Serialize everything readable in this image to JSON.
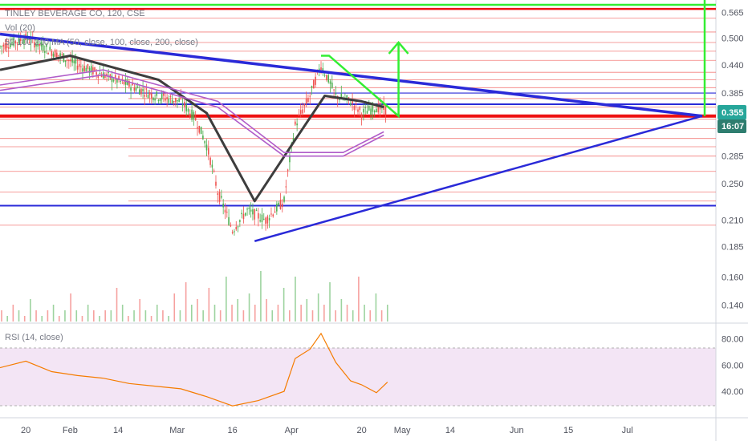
{
  "legend": {
    "symbol_line": "TINLEY BEVERAGE CO, 120, CSE",
    "volume_line": "Vol (20)",
    "ma_line": "50 100 200 MA (50, close, 100, close, 200, close)",
    "rsi_line": "RSI (14, close)"
  },
  "price_axis": {
    "ticks": [
      "0.565",
      "0.500",
      "0.440",
      "0.385",
      "0.285",
      "0.250",
      "0.210",
      "0.185",
      "0.160",
      "0.140"
    ],
    "current_price": "0.355",
    "countdown": "16:07"
  },
  "rsi_axis": {
    "ticks": [
      "80.00",
      "60.00",
      "40.00"
    ]
  },
  "time_axis": {
    "ticks": [
      "20",
      "Feb",
      "14",
      "Mar",
      "16",
      "Apr",
      "20",
      "May",
      "14",
      "Jun",
      "15",
      "Jul"
    ]
  },
  "colors": {
    "candles": "#4caf50",
    "horizontal_levels": "#ef5350",
    "blue_trendlines": "#2a2ad8",
    "green_drawings": "#33ee33",
    "red_levels": "#ee1111",
    "ma_dark": "#3d3d3d",
    "ma_purple": "#b05cc9",
    "rsi_line": "#f57c00",
    "rsi_band": "#f3e5f5",
    "price_badge": "#26a69a",
    "countdown_badge": "#2e7d6f"
  },
  "chart_data": [
    {
      "type": "line",
      "title": "TINLEY BEVERAGE CO, 120, CSE",
      "x_range": [
        "Jan 13",
        "Jul 25"
      ],
      "y_scale": "log",
      "ylim": [
        0.13,
        0.6
      ],
      "series": [
        {
          "name": "price",
          "x": [
            "Jan 13",
            "Jan 20",
            "Jan 27",
            "Feb 3",
            "Feb 10",
            "Feb 17",
            "Feb 24",
            "Mar 2",
            "Mar 6",
            "Mar 9",
            "Mar 12",
            "Mar 16",
            "Mar 20",
            "Mar 25",
            "Mar 30",
            "Apr 2",
            "Apr 6",
            "Apr 9",
            "Apr 13",
            "Apr 17",
            "Apr 20",
            "Apr 24",
            "Apr 27"
          ],
          "values": [
            0.48,
            0.5,
            0.47,
            0.44,
            0.42,
            0.4,
            0.38,
            0.37,
            0.34,
            0.3,
            0.24,
            0.2,
            0.22,
            0.21,
            0.23,
            0.33,
            0.38,
            0.44,
            0.38,
            0.37,
            0.35,
            0.36,
            0.355
          ]
        },
        {
          "name": "50",
          "x": [
            "Jan 13",
            "Feb 1",
            "Feb 25",
            "Mar 9",
            "Mar 22",
            "Apr 1",
            "Apr 10",
            "Apr 20",
            "Apr 26"
          ],
          "values": [
            0.43,
            0.46,
            0.41,
            0.35,
            0.23,
            0.3,
            0.38,
            0.37,
            0.36
          ]
        },
        {
          "name": "100",
          "x": [
            "Jan 13",
            "Feb 10",
            "Mar 12",
            "Mar 30",
            "Apr 15",
            "Apr 26"
          ],
          "values": [
            0.4,
            0.43,
            0.37,
            0.29,
            0.29,
            0.32
          ]
        },
        {
          "name": "200",
          "x": [
            "Jan 13",
            "Feb 10",
            "Mar 12",
            "Mar 30",
            "Apr 15",
            "Apr 26"
          ],
          "values": [
            0.39,
            0.42,
            0.36,
            0.285,
            0.285,
            0.315
          ]
        }
      ],
      "horizontal_levels": [
        0.575,
        0.55,
        0.515,
        0.49,
        0.47,
        0.45,
        0.425,
        0.41,
        0.395,
        0.375,
        0.36,
        0.34,
        0.325,
        0.31,
        0.298,
        0.285,
        0.265,
        0.24,
        0.23,
        0.205
      ],
      "key_levels": {
        "red": [
          0.575,
          0.345
        ],
        "blue": [
          0.385,
          0.365,
          0.225
        ]
      }
    },
    {
      "type": "bar",
      "title": "Vol (20)",
      "note": "volume bars, values unlabeled",
      "values": [
        2,
        1,
        3,
        2,
        1,
        4,
        2,
        1,
        2,
        3,
        1,
        2,
        5,
        2,
        1,
        3,
        2,
        1,
        2,
        2,
        6,
        3,
        1,
        2,
        4,
        2,
        1,
        3,
        2,
        1,
        5,
        2,
        7,
        3,
        4,
        2,
        6,
        3,
        2,
        8,
        3,
        4,
        2,
        5,
        3,
        9,
        4,
        2,
        3,
        6,
        2,
        8,
        3,
        4,
        2,
        5,
        3,
        7,
        2,
        4,
        3,
        2,
        8,
        3,
        2,
        5,
        2,
        3
      ]
    },
    {
      "type": "line",
      "title": "RSI (14, close)",
      "ylim": [
        20,
        90
      ],
      "bands": [
        30,
        70
      ],
      "series": [
        {
          "name": "RSI",
          "x": [
            "Jan 13",
            "Jan 20",
            "Jan 27",
            "Feb 3",
            "Feb 10",
            "Feb 17",
            "Feb 24",
            "Mar 2",
            "Mar 9",
            "Mar 16",
            "Mar 23",
            "Mar 30",
            "Apr 2",
            "Apr 6",
            "Apr 9",
            "Apr 13",
            "Apr 17",
            "Apr 20",
            "Apr 24",
            "Apr 27"
          ],
          "values": [
            58,
            63,
            55,
            52,
            50,
            46,
            44,
            42,
            36,
            29,
            33,
            40,
            65,
            72,
            84,
            62,
            48,
            45,
            39,
            47
          ]
        }
      ]
    }
  ]
}
